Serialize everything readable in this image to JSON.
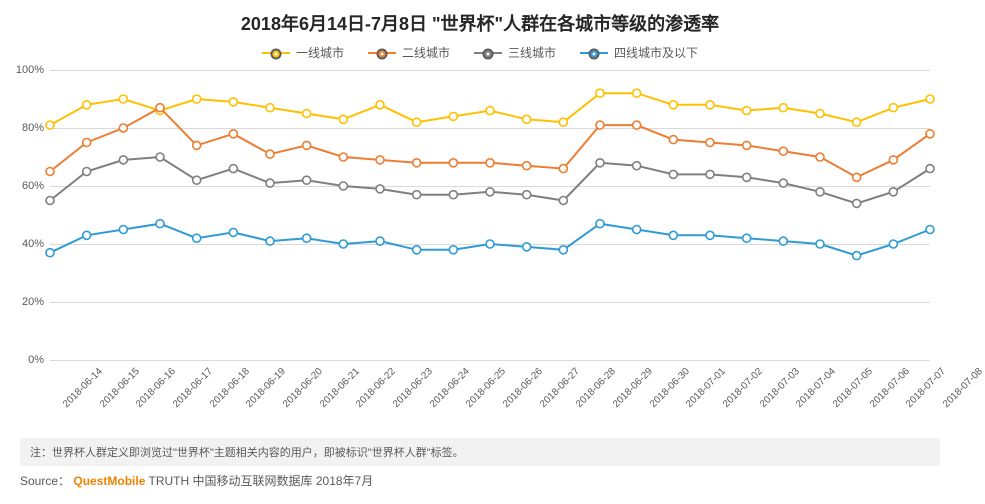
{
  "title": "2018年6月14日-7月8日 \"世界杯\"人群在各城市等级的渗透率",
  "legend_labels": [
    "一线城市",
    "二线城市",
    "三线城市",
    "四线城市及以下"
  ],
  "series_colors": [
    "#ffc000",
    "#ed7d31",
    "#7f7f7f",
    "#2e9bd6"
  ],
  "marker_style": "circle-open",
  "marker_size": 4,
  "line_width": 2,
  "grid_color": "#d9d9d9",
  "axis_color": "#bfbfbf",
  "background_color": "#ffffff",
  "ylim": [
    0,
    100
  ],
  "ytick_step": 20,
  "ytick_suffix": "%",
  "x_categories": [
    "2018-06-14",
    "2018-06-15",
    "2018-06-16",
    "2018-06-17",
    "2018-06-18",
    "2018-06-19",
    "2018-06-20",
    "2018-06-21",
    "2018-06-22",
    "2018-06-23",
    "2018-06-24",
    "2018-06-25",
    "2018-06-26",
    "2018-06-27",
    "2018-06-28",
    "2018-06-29",
    "2018-06-30",
    "2018-07-01",
    "2018-07-02",
    "2018-07-03",
    "2018-07-04",
    "2018-07-05",
    "2018-07-06",
    "2018-07-07",
    "2018-07-08"
  ],
  "series": [
    [
      81,
      88,
      90,
      86,
      90,
      89,
      87,
      85,
      83,
      88,
      82,
      84,
      86,
      83,
      82,
      92,
      92,
      88,
      88,
      86,
      87,
      85,
      82,
      87,
      90
    ],
    [
      65,
      75,
      80,
      87,
      74,
      78,
      71,
      74,
      70,
      69,
      68,
      68,
      68,
      67,
      66,
      81,
      81,
      76,
      75,
      74,
      72,
      70,
      63,
      69,
      78
    ],
    [
      55,
      65,
      69,
      70,
      62,
      66,
      61,
      62,
      60,
      59,
      57,
      57,
      58,
      57,
      55,
      68,
      67,
      64,
      64,
      63,
      61,
      58,
      54,
      58,
      66
    ],
    [
      37,
      43,
      45,
      47,
      42,
      44,
      41,
      42,
      40,
      41,
      38,
      38,
      40,
      39,
      38,
      47,
      45,
      43,
      43,
      42,
      41,
      40,
      36,
      40,
      45
    ]
  ],
  "note_text": "注：世界杯人群定义即浏览过\"世界杯\"主题相关内容的用户，即被标识\"世界杯人群\"标签。",
  "source_prefix": "Source：",
  "source_brand": "QuestMobile",
  "source_suffix": " TRUTH 中国移动互联网数据库 2018年7月",
  "title_fontsize": 18,
  "label_fontsize": 11,
  "x_label_rotation": -45,
  "chart_type": "line"
}
